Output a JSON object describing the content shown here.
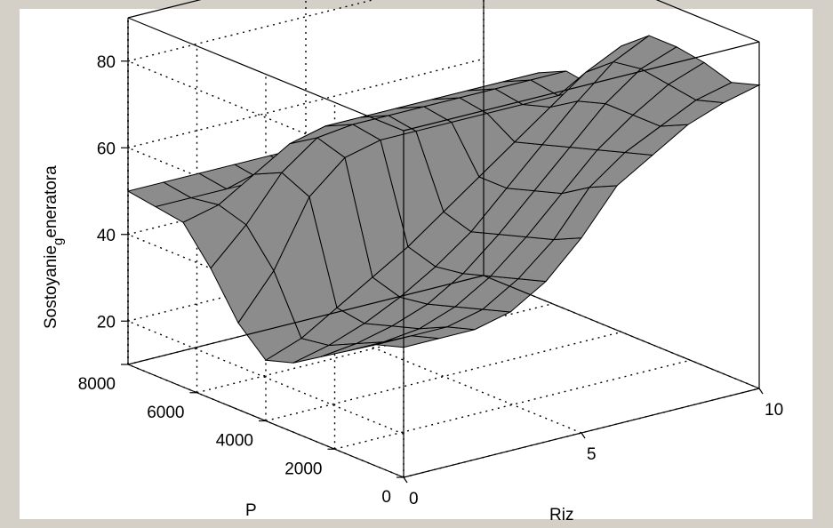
{
  "chart_data": {
    "type": "surface",
    "title": "",
    "xlabel": "Riz",
    "ylabel": "P",
    "zlabel_main": "Sostoyanie",
    "zlabel_sub": "g",
    "zlabel_rest": "eneratora",
    "x_ticks": [
      "0",
      "5",
      "10"
    ],
    "y_ticks": [
      "0",
      "2000",
      "4000",
      "6000",
      "8000"
    ],
    "z_ticks": [
      "20",
      "40",
      "60",
      "80"
    ],
    "xlim": [
      0,
      10
    ],
    "ylim": [
      0,
      8000
    ],
    "zlim": [
      10,
      90
    ],
    "grid": true,
    "surface_color": "#8c8c8c",
    "edge_color": "#000000",
    "background_color": "#d4d0c8",
    "axes_background_color": "#ffffff",
    "x": [
      0,
      1,
      2,
      3,
      4,
      5,
      6,
      7,
      8,
      9,
      10
    ],
    "y": [
      0,
      800,
      1600,
      2400,
      3200,
      4000,
      4800,
      5600,
      6400,
      7200,
      8000
    ],
    "z": [
      [
        40,
        40,
        40,
        42,
        47,
        55,
        65,
        70,
        75,
        78,
        80
      ],
      [
        38,
        38,
        38,
        40,
        45,
        52,
        62,
        68,
        72,
        76,
        78
      ],
      [
        34,
        34,
        35,
        38,
        43,
        50,
        58,
        66,
        72,
        77,
        80
      ],
      [
        30,
        31,
        33,
        36,
        41,
        48,
        56,
        64,
        72,
        78,
        81
      ],
      [
        26,
        28,
        31,
        35,
        40,
        46,
        54,
        62,
        70,
        77,
        81
      ],
      [
        24,
        27,
        32,
        37,
        42,
        48,
        54,
        60,
        66,
        72,
        76
      ],
      [
        30,
        40,
        55,
        62,
        64,
        64,
        64,
        64,
        64,
        64,
        64
      ],
      [
        40,
        48,
        58,
        64,
        65,
        65,
        65,
        65,
        65,
        65,
        65
      ],
      [
        48,
        50,
        55,
        60,
        62,
        62,
        62,
        62,
        62,
        62,
        62
      ],
      [
        49,
        49,
        49,
        49,
        49,
        49,
        49,
        49,
        49,
        49,
        49
      ],
      [
        50,
        50,
        50,
        50,
        50,
        50,
        50,
        50,
        50,
        50,
        50
      ]
    ]
  }
}
